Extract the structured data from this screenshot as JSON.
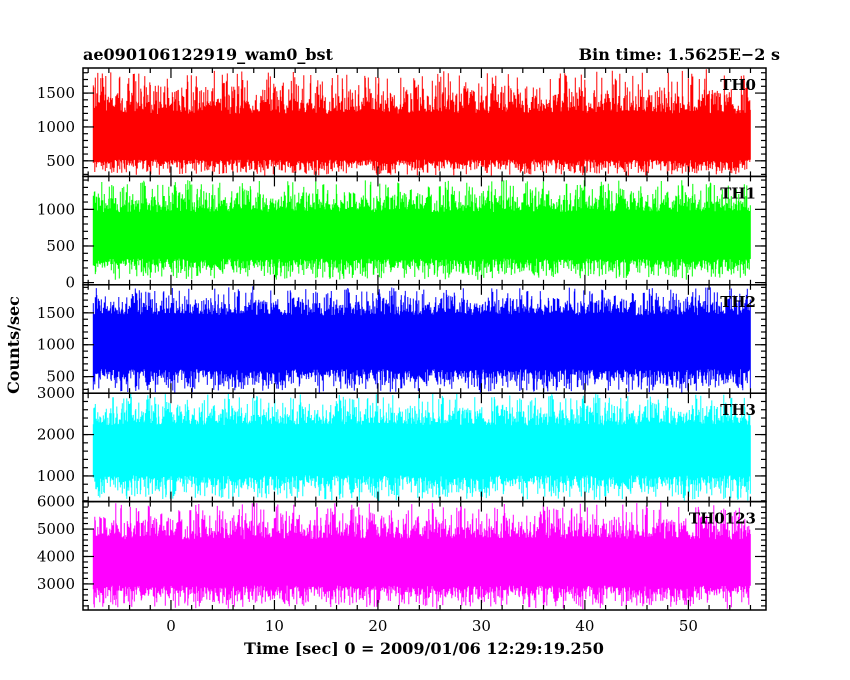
{
  "chart_data": {
    "type": "line",
    "title_left": "ae090106122919_wam0_bst",
    "title_right": "Bin time: 1.5625E−2 s",
    "xlabel": "Time [sec] 0 = 2009/01/06 12:29:19.250",
    "ylabel": "Counts/sec",
    "xlim": [
      -8.5,
      57.5
    ],
    "x_ticks": [
      0,
      10,
      20,
      30,
      40,
      50
    ],
    "x_tick_labels": [
      "0",
      "10",
      "20",
      "30",
      "40",
      "50"
    ],
    "data_x_range": [
      -7.5,
      56
    ],
    "grid": false,
    "panels": [
      {
        "name": "TH0",
        "color": "#ff0000",
        "ylim": [
          270,
          1870
        ],
        "y_ticks": [
          500,
          1000,
          1500
        ],
        "y_tick_labels": [
          "500",
          "1000",
          "1500"
        ],
        "mean": 850,
        "band_low": 520,
        "band_high": 1190,
        "min": 280,
        "max": 1830
      },
      {
        "name": "TH1",
        "color": "#00ff00",
        "ylim": [
          -30,
          1450
        ],
        "y_ticks": [
          0,
          500,
          1000
        ],
        "y_tick_labels": [
          "0",
          "500",
          "1000"
        ],
        "mean": 640,
        "band_low": 330,
        "band_high": 960,
        "min": 40,
        "max": 1400
      },
      {
        "name": "TH2",
        "color": "#0000ff",
        "ylim": [
          240,
          1940
        ],
        "y_ticks": [
          500,
          1000,
          1500
        ],
        "y_tick_labels": [
          "500",
          "1000",
          "1500"
        ],
        "mean": 1040,
        "band_low": 620,
        "band_high": 1460,
        "min": 250,
        "max": 1900
      },
      {
        "name": "TH3",
        "color": "#00ffff",
        "ylim": [
          380,
          3000
        ],
        "y_ticks": [
          1000,
          2000,
          3000
        ],
        "y_tick_labels": [
          "1000",
          "2000",
          "3000"
        ],
        "mean": 1620,
        "band_low": 1020,
        "band_high": 2220,
        "min": 400,
        "max": 2990
      },
      {
        "name": "TH0123",
        "color": "#ff00ff",
        "ylim": [
          2050,
          6000
        ],
        "y_ticks": [
          3000,
          4000,
          5000,
          6000
        ],
        "y_tick_labels": [
          "3000",
          "4000",
          "5000",
          "6000"
        ],
        "mean": 3790,
        "band_low": 2950,
        "band_high": 4620,
        "min": 2100,
        "max": 5950
      }
    ]
  }
}
